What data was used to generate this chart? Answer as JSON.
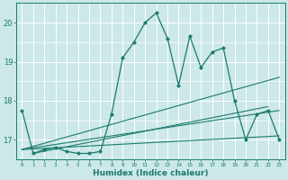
{
  "xlabel": "Humidex (Indice chaleur)",
  "bg_color": "#cce8e8",
  "grid_color": "#ffffff",
  "line_color": "#1a7a6e",
  "xlim": [
    -0.5,
    23.5
  ],
  "ylim": [
    16.5,
    20.5
  ],
  "yticks": [
    17,
    18,
    19,
    20
  ],
  "xticks": [
    0,
    1,
    2,
    3,
    4,
    5,
    6,
    7,
    8,
    9,
    10,
    11,
    12,
    13,
    14,
    15,
    16,
    17,
    18,
    19,
    20,
    21,
    22,
    23
  ],
  "main_line": {
    "x": [
      0,
      1,
      2,
      3,
      4,
      5,
      6,
      7,
      8,
      9,
      10,
      11,
      12,
      13,
      14,
      15,
      16,
      17,
      18,
      19,
      20,
      21,
      22,
      23
    ],
    "y": [
      17.75,
      16.65,
      16.75,
      16.8,
      16.7,
      16.65,
      16.65,
      16.7,
      17.65,
      19.1,
      19.5,
      20.0,
      20.25,
      19.6,
      18.4,
      19.65,
      18.85,
      19.25,
      19.35,
      18.0,
      17.0,
      17.65,
      17.75,
      17.0
    ]
  },
  "trend_lines": [
    {
      "x": [
        0,
        23
      ],
      "y": [
        16.75,
        18.6
      ]
    },
    {
      "x": [
        0,
        23
      ],
      "y": [
        16.75,
        17.75
      ]
    },
    {
      "x": [
        0,
        23
      ],
      "y": [
        16.75,
        17.1
      ]
    },
    {
      "x": [
        1,
        22
      ],
      "y": [
        16.65,
        17.85
      ]
    }
  ]
}
